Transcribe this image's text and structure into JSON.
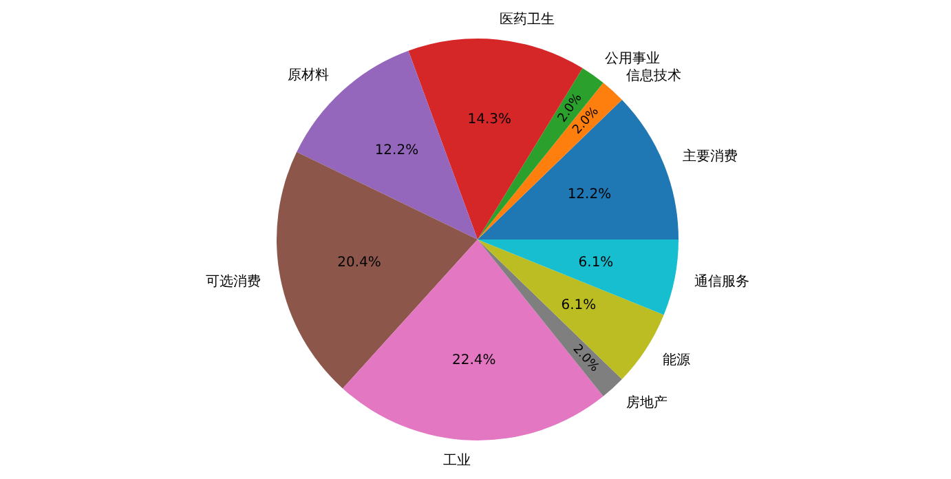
{
  "chart_data": {
    "type": "pie",
    "categories": [
      "主要消费",
      "信息技术",
      "公用事业",
      "医药卫生",
      "原材料",
      "可选消费",
      "工业",
      "房地产",
      "能源",
      "通信服务"
    ],
    "values": [
      12.2,
      2.0,
      2.0,
      14.3,
      12.2,
      20.4,
      22.4,
      2.0,
      6.1,
      6.1
    ],
    "colors": [
      "#1f77b4",
      "#ff7f0e",
      "#2ca02c",
      "#d62728",
      "#9467bd",
      "#8c564b",
      "#e377c2",
      "#7f7f7f",
      "#bcbd22",
      "#17becf"
    ],
    "value_labels": [
      "12.2%",
      "2.0%",
      "2.0%",
      "14.3%",
      "12.2%",
      "20.4%",
      "22.4%",
      "2.0%",
      "6.1%",
      "6.1%"
    ]
  }
}
